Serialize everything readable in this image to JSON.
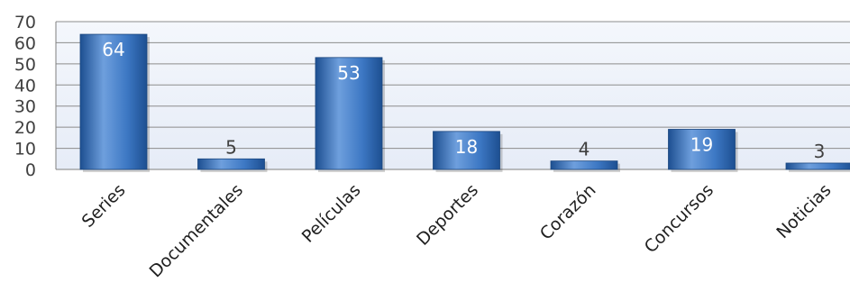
{
  "chart_data": {
    "type": "bar",
    "title": "",
    "xlabel": "",
    "ylabel": "",
    "categories": [
      "Series",
      "Documentales",
      "Películas",
      "Deportes",
      "Corazón",
      "Concursos",
      "Noticias"
    ],
    "values": [
      64,
      5,
      53,
      18,
      4,
      19,
      3
    ],
    "ylim": [
      0,
      70
    ],
    "yticks": [
      0,
      10,
      20,
      30,
      40,
      50,
      60,
      70
    ],
    "grid": true,
    "legend": "none",
    "colors": {
      "bar": "#3d78c4",
      "bar_dark": "#1d4f91",
      "bar_light": "#6e9fdd",
      "plot_background": "#e6ecf7",
      "grid": "#8c8c8c",
      "axis": "#7f7f7f"
    }
  }
}
